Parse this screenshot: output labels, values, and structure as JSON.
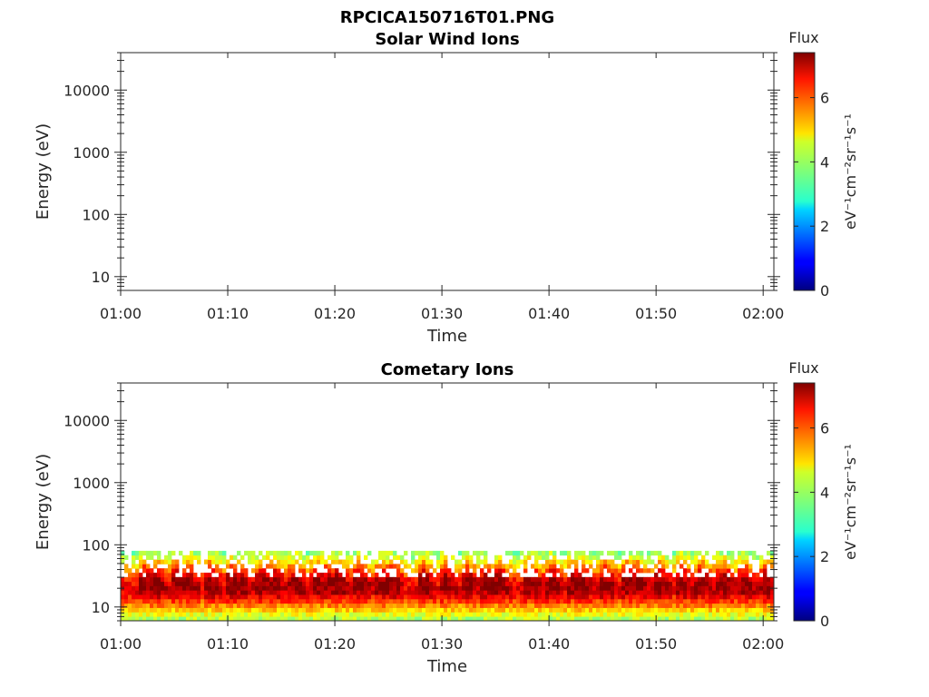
{
  "figure": {
    "file_title": "RPCICA150716T01.PNG"
  },
  "chart_data": [
    {
      "type": "heatmap",
      "title": "Solar Wind Ions",
      "xlabel": "Time",
      "ylabel": "Energy (eV)",
      "x_ticks": [
        "01:00",
        "01:10",
        "01:20",
        "01:30",
        "01:40",
        "01:50",
        "02:00"
      ],
      "xlim": [
        "01:00",
        "02:01"
      ],
      "y_scale": "log",
      "y_ticks": [
        10,
        100,
        1000,
        10000
      ],
      "ylim": [
        6,
        40000
      ],
      "colorbar": {
        "title": "Flux",
        "label": "eV⁻¹cm⁻²sr⁻¹s⁻¹",
        "ticks": [
          0,
          2,
          4,
          6
        ],
        "range": [
          0,
          7.4
        ],
        "colormap": "jet"
      },
      "data": "empty (no flux recorded)"
    },
    {
      "type": "heatmap",
      "title": "Cometary Ions",
      "xlabel": "Time",
      "ylabel": "Energy (eV)",
      "x_ticks": [
        "01:00",
        "01:10",
        "01:20",
        "01:30",
        "01:40",
        "01:50",
        "02:00"
      ],
      "xlim": [
        "01:00",
        "02:01"
      ],
      "y_scale": "log",
      "y_ticks": [
        10,
        100,
        1000,
        10000
      ],
      "ylim": [
        6,
        40000
      ],
      "colorbar": {
        "title": "Flux",
        "label": "eV⁻¹cm⁻²sr⁻¹s⁻¹",
        "ticks": [
          0,
          2,
          4,
          6
        ],
        "range": [
          0,
          7.4
        ],
        "colormap": "jet"
      },
      "energy_band_eV": [
        6,
        80
      ],
      "peak_energy_eV": 20,
      "peak_flux": 7,
      "burst_times": [
        "01:02",
        "01:03",
        "01:05",
        "01:06",
        "01:08",
        "01:10",
        "01:11",
        "01:13",
        "01:14",
        "01:16",
        "01:18",
        "01:19",
        "01:20",
        "01:22",
        "01:24",
        "01:25",
        "01:28",
        "01:30",
        "01:32",
        "01:34",
        "01:35",
        "01:38",
        "01:40",
        "01:42",
        "01:43",
        "01:45",
        "01:47",
        "01:48",
        "01:50",
        "01:52",
        "01:54",
        "01:56",
        "01:58",
        "02:00"
      ]
    }
  ]
}
